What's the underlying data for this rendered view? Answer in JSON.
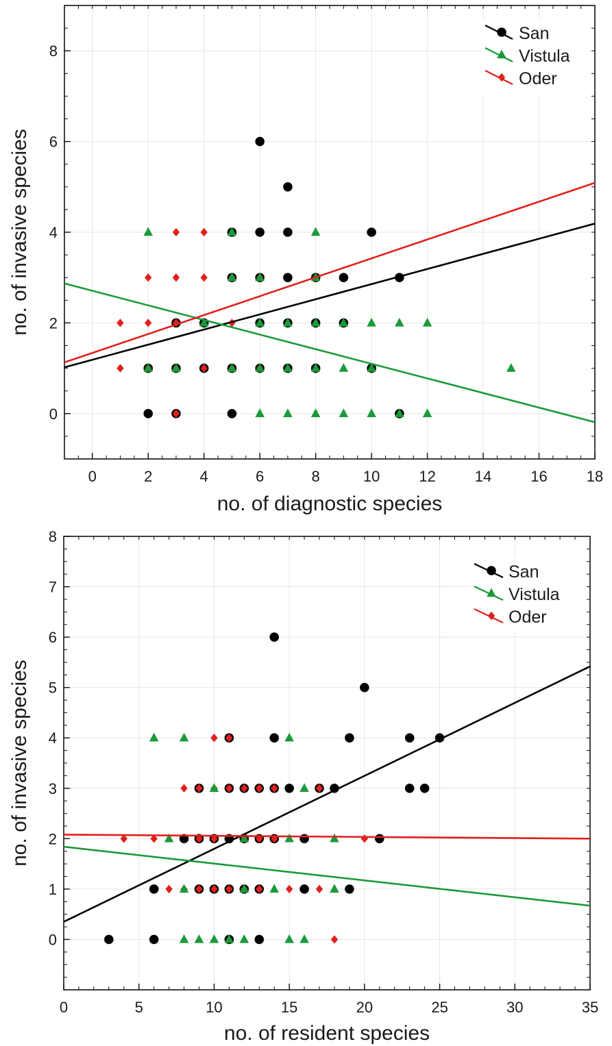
{
  "chart_data": [
    {
      "type": "scatter",
      "xlabel": "no. of diagnostic species",
      "ylabel": "no. of invasive species",
      "xlim": [
        -1,
        18
      ],
      "ylim": [
        -1,
        9
      ],
      "xticks": [
        "0",
        "2",
        "4",
        "6",
        "8",
        "10",
        "12",
        "14",
        "16",
        "18"
      ],
      "yticks": [
        "0",
        "2",
        "4",
        "6",
        "8"
      ],
      "grid": true,
      "legend_position": "top-right",
      "series": [
        {
          "name": "San",
          "color": "#000000",
          "marker": "circle",
          "points": [
            [
              2,
              0
            ],
            [
              3,
              0
            ],
            [
              5,
              0
            ],
            [
              11,
              0
            ],
            [
              2,
              1
            ],
            [
              3,
              1
            ],
            [
              4,
              1
            ],
            [
              5,
              1
            ],
            [
              6,
              1
            ],
            [
              7,
              1
            ],
            [
              8,
              1
            ],
            [
              10,
              1
            ],
            [
              3,
              2
            ],
            [
              4,
              2
            ],
            [
              6,
              2
            ],
            [
              7,
              2
            ],
            [
              8,
              2
            ],
            [
              9,
              2
            ],
            [
              5,
              3
            ],
            [
              6,
              3
            ],
            [
              7,
              3
            ],
            [
              8,
              3
            ],
            [
              9,
              3
            ],
            [
              11,
              3
            ],
            [
              5,
              4
            ],
            [
              6,
              4
            ],
            [
              7,
              4
            ],
            [
              10,
              4
            ],
            [
              7,
              5
            ],
            [
              6,
              6
            ]
          ],
          "trend": [
            [
              -1,
              1.02
            ],
            [
              18,
              4.19
            ]
          ]
        },
        {
          "name": "Vistula",
          "color": "#1a9a3a",
          "marker": "triangle",
          "points": [
            [
              6,
              0
            ],
            [
              7,
              0
            ],
            [
              8,
              0
            ],
            [
              9,
              0
            ],
            [
              10,
              0
            ],
            [
              11,
              0
            ],
            [
              12,
              0
            ],
            [
              2,
              1
            ],
            [
              3,
              1
            ],
            [
              5,
              1
            ],
            [
              6,
              1
            ],
            [
              7,
              1
            ],
            [
              8,
              1
            ],
            [
              9,
              1
            ],
            [
              10,
              1
            ],
            [
              15,
              1
            ],
            [
              4,
              2
            ],
            [
              6,
              2
            ],
            [
              7,
              2
            ],
            [
              8,
              2
            ],
            [
              9,
              2
            ],
            [
              10,
              2
            ],
            [
              11,
              2
            ],
            [
              12,
              2
            ],
            [
              5,
              3
            ],
            [
              6,
              3
            ],
            [
              8,
              3
            ],
            [
              2,
              4
            ],
            [
              5,
              4
            ],
            [
              8,
              4
            ]
          ],
          "trend": [
            [
              -1,
              2.87
            ],
            [
              18,
              -0.19
            ]
          ]
        },
        {
          "name": "Oder",
          "color": "#e0201c",
          "marker": "diamond",
          "points": [
            [
              3,
              0
            ],
            [
              1,
              1
            ],
            [
              2,
              1
            ],
            [
              3,
              1
            ],
            [
              4,
              1
            ],
            [
              5,
              1
            ],
            [
              6,
              1
            ],
            [
              1,
              2
            ],
            [
              2,
              2
            ],
            [
              3,
              2
            ],
            [
              5,
              2
            ],
            [
              2,
              3
            ],
            [
              3,
              3
            ],
            [
              4,
              3
            ],
            [
              5,
              3
            ],
            [
              6,
              3
            ],
            [
              8,
              3
            ],
            [
              3,
              4
            ],
            [
              4,
              4
            ]
          ],
          "trend": [
            [
              -1,
              1.13
            ],
            [
              18,
              5.09
            ]
          ]
        }
      ]
    },
    {
      "type": "scatter",
      "xlabel": "no. of resident species",
      "ylabel": "no. of invasive species",
      "xlim": [
        0,
        35
      ],
      "ylim": [
        -1,
        8
      ],
      "xticks": [
        "0",
        "5",
        "10",
        "15",
        "20",
        "25",
        "30",
        "35"
      ],
      "yticks": [
        "0",
        "1",
        "2",
        "3",
        "4",
        "5",
        "6",
        "7",
        "8"
      ],
      "grid": true,
      "legend_position": "top-right",
      "series": [
        {
          "name": "San",
          "color": "#000000",
          "marker": "circle",
          "points": [
            [
              3,
              0
            ],
            [
              6,
              0
            ],
            [
              11,
              0
            ],
            [
              13,
              0
            ],
            [
              6,
              1
            ],
            [
              9,
              1
            ],
            [
              10,
              1
            ],
            [
              11,
              1
            ],
            [
              12,
              1
            ],
            [
              13,
              1
            ],
            [
              16,
              1
            ],
            [
              19,
              1
            ],
            [
              8,
              2
            ],
            [
              9,
              2
            ],
            [
              10,
              2
            ],
            [
              11,
              2
            ],
            [
              12,
              2
            ],
            [
              13,
              2
            ],
            [
              14,
              2
            ],
            [
              16,
              2
            ],
            [
              21,
              2
            ],
            [
              9,
              3
            ],
            [
              11,
              3
            ],
            [
              12,
              3
            ],
            [
              13,
              3
            ],
            [
              14,
              3
            ],
            [
              15,
              3
            ],
            [
              17,
              3
            ],
            [
              18,
              3
            ],
            [
              23,
              3
            ],
            [
              24,
              3
            ],
            [
              11,
              4
            ],
            [
              14,
              4
            ],
            [
              19,
              4
            ],
            [
              23,
              4
            ],
            [
              25,
              4
            ],
            [
              20,
              5
            ],
            [
              14,
              6
            ]
          ],
          "trend": [
            [
              0,
              0.35
            ],
            [
              35,
              5.42
            ]
          ]
        },
        {
          "name": "Vistula",
          "color": "#1a9a3a",
          "marker": "triangle",
          "points": [
            [
              8,
              0
            ],
            [
              9,
              0
            ],
            [
              10,
              0
            ],
            [
              11,
              0
            ],
            [
              12,
              0
            ],
            [
              15,
              0
            ],
            [
              16,
              0
            ],
            [
              8,
              1
            ],
            [
              12,
              1
            ],
            [
              14,
              1
            ],
            [
              18,
              1
            ],
            [
              7,
              2
            ],
            [
              12,
              2
            ],
            [
              15,
              2
            ],
            [
              18,
              2
            ],
            [
              10,
              3
            ],
            [
              16,
              3
            ],
            [
              6,
              4
            ],
            [
              8,
              4
            ],
            [
              15,
              4
            ]
          ],
          "trend": [
            [
              0,
              1.84
            ],
            [
              35,
              0.67
            ]
          ]
        },
        {
          "name": "Oder",
          "color": "#e0201c",
          "marker": "diamond",
          "points": [
            [
              18,
              0
            ],
            [
              7,
              1
            ],
            [
              8,
              1
            ],
            [
              9,
              1
            ],
            [
              10,
              1
            ],
            [
              11,
              1
            ],
            [
              12,
              1
            ],
            [
              13,
              1
            ],
            [
              15,
              1
            ],
            [
              17,
              1
            ],
            [
              4,
              2
            ],
            [
              6,
              2
            ],
            [
              9,
              2
            ],
            [
              10,
              2
            ],
            [
              12,
              2
            ],
            [
              13,
              2
            ],
            [
              14,
              2
            ],
            [
              20,
              2
            ],
            [
              8,
              3
            ],
            [
              9,
              3
            ],
            [
              10,
              3
            ],
            [
              11,
              3
            ],
            [
              12,
              3
            ],
            [
              13,
              3
            ],
            [
              14,
              3
            ],
            [
              17,
              3
            ],
            [
              10,
              4
            ],
            [
              11,
              4
            ]
          ],
          "trend": [
            [
              0,
              2.08
            ],
            [
              35,
              2.0
            ]
          ]
        }
      ]
    }
  ]
}
